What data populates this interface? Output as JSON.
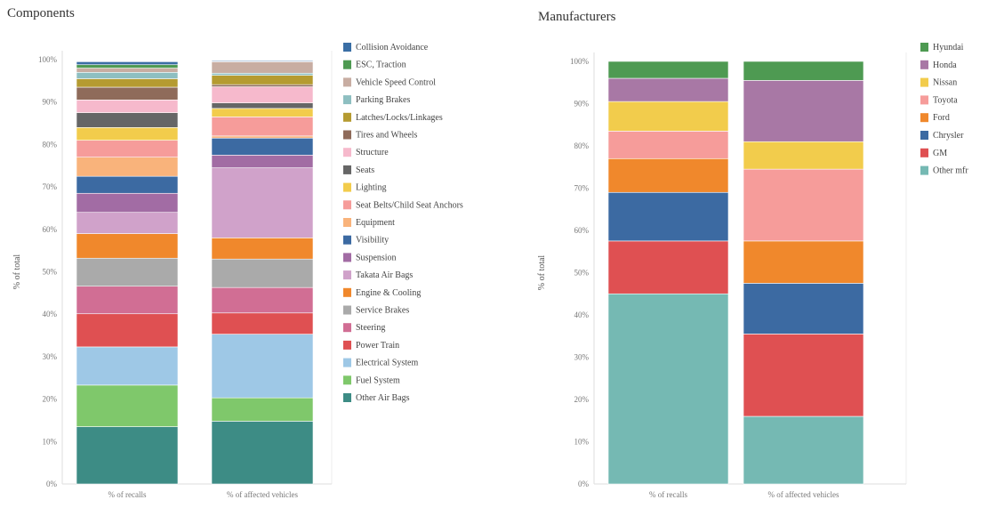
{
  "panels": {
    "left_title": "Components",
    "right_title": "Manufacturers"
  },
  "chart_data": [
    {
      "type": "bar",
      "stacked": true,
      "title": "Components",
      "ylabel": "% of total",
      "ylim": [
        0,
        100
      ],
      "yticks": [
        "0%",
        "10%",
        "20%",
        "30%",
        "40%",
        "50%",
        "60%",
        "70%",
        "80%",
        "90%",
        "100%"
      ],
      "categories": [
        "% of recalls",
        "% of affected vehicles"
      ],
      "legend_position": "right",
      "series": [
        {
          "name": "Other Air Bags",
          "color": "#3d8c85",
          "values": [
            13.5,
            14.8
          ]
        },
        {
          "name": "Fuel System",
          "color": "#7fc86b",
          "values": [
            9.8,
            5.5
          ]
        },
        {
          "name": "Electrical System",
          "color": "#9ec8e6",
          "values": [
            9.0,
            15.0
          ]
        },
        {
          "name": "Power Train",
          "color": "#df5052",
          "values": [
            7.8,
            5.0
          ]
        },
        {
          "name": "Steering",
          "color": "#d16e94",
          "values": [
            6.5,
            6.0
          ]
        },
        {
          "name": "Service Brakes",
          "color": "#aaaaaa",
          "values": [
            6.6,
            6.7
          ]
        },
        {
          "name": "Engine & Cooling",
          "color": "#f0882c",
          "values": [
            5.8,
            5.0
          ]
        },
        {
          "name": "Takata Air Bags",
          "color": "#d0a2ca",
          "values": [
            5.0,
            16.5
          ]
        },
        {
          "name": "Suspension",
          "color": "#a26ca4",
          "values": [
            4.5,
            3.0
          ]
        },
        {
          "name": "Visibility",
          "color": "#3c6aa2",
          "values": [
            4.0,
            4.0
          ]
        },
        {
          "name": "Equipment",
          "color": "#f9b37b",
          "values": [
            4.5,
            0.5
          ]
        },
        {
          "name": "Seat Belts/Child Seat Anchors",
          "color": "#f69c9a",
          "values": [
            4.0,
            4.5
          ]
        },
        {
          "name": "Lighting",
          "color": "#f2cc4c",
          "values": [
            3.0,
            2.0
          ]
        },
        {
          "name": "Seats",
          "color": "#666666",
          "values": [
            3.5,
            1.3
          ]
        },
        {
          "name": "Structure",
          "color": "#f6b9cc",
          "values": [
            3.0,
            3.8
          ]
        },
        {
          "name": "Tires and Wheels",
          "color": "#8f6b5a",
          "values": [
            3.0,
            0.5
          ]
        },
        {
          "name": "Latches/Locks/Linkages",
          "color": "#b59b31",
          "values": [
            2.0,
            2.2
          ]
        },
        {
          "name": "Parking Brakes",
          "color": "#8ebfc1",
          "values": [
            1.5,
            0.5
          ]
        },
        {
          "name": "Vehicle Speed Control",
          "color": "#c8ada2",
          "values": [
            1.0,
            2.7
          ]
        },
        {
          "name": "ESC, Traction",
          "color": "#4e9a52",
          "values": [
            0.8,
            0.1
          ]
        },
        {
          "name": "Collision Avoidance",
          "color": "#3a6ea5",
          "values": [
            0.7,
            0.2
          ]
        }
      ]
    },
    {
      "type": "bar",
      "stacked": true,
      "title": "Manufacturers",
      "ylabel": "% of total",
      "ylim": [
        0,
        100
      ],
      "yticks": [
        "0%",
        "10%",
        "20%",
        "30%",
        "40%",
        "50%",
        "60%",
        "70%",
        "80%",
        "90%",
        "100%"
      ],
      "categories": [
        "% of recalls",
        "% of affected vehicles"
      ],
      "legend_position": "right",
      "series": [
        {
          "name": "Other mfr",
          "color": "#75b9b3",
          "values": [
            45.0,
            16.0
          ]
        },
        {
          "name": "GM",
          "color": "#df5052",
          "values": [
            12.5,
            19.5
          ]
        },
        {
          "name": "Chrysler",
          "color": "#3c6aa2",
          "values": [
            11.5,
            12.0
          ]
        },
        {
          "name": "Ford",
          "color": "#f0882c",
          "values": [
            8.0,
            10.0
          ]
        },
        {
          "name": "Toyota",
          "color": "#f69c9a",
          "values": [
            6.5,
            17.0
          ]
        },
        {
          "name": "Nissan",
          "color": "#f2cc4c",
          "values": [
            7.0,
            6.5
          ]
        },
        {
          "name": "Honda",
          "color": "#a878a5",
          "values": [
            5.5,
            14.5
          ]
        },
        {
          "name": "Hyundai",
          "color": "#4e9a52",
          "values": [
            4.0,
            4.5
          ]
        }
      ]
    }
  ]
}
